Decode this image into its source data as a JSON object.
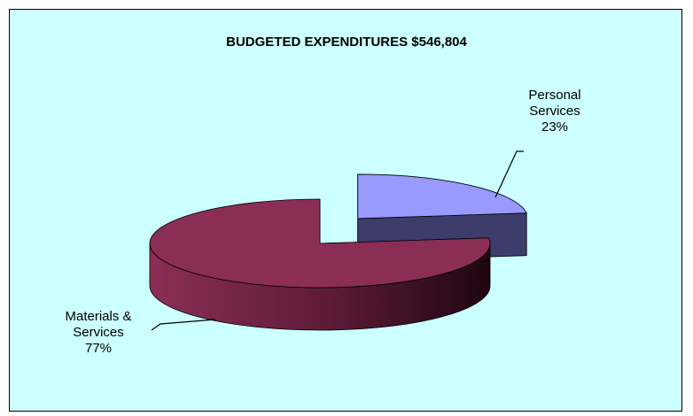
{
  "chart_data": {
    "type": "pie",
    "title": "BUDGETED EXPENDITURES $546,804",
    "three_d": true,
    "exploded": true,
    "series": [
      {
        "name": "",
        "slices": [
          {
            "label_line1": "Personal",
            "label_line2": "Services",
            "percent_label": "23%",
            "value": 23,
            "color": "#9999ff",
            "side_color": "#3d3d6b"
          },
          {
            "label_line1": "Materials &",
            "label_line2": "Services",
            "percent_label": "77%",
            "value": 77,
            "color": "#8b2e55",
            "side_color": "#5a1a36"
          }
        ]
      }
    ],
    "legend": "none",
    "background": "#ccffff"
  }
}
